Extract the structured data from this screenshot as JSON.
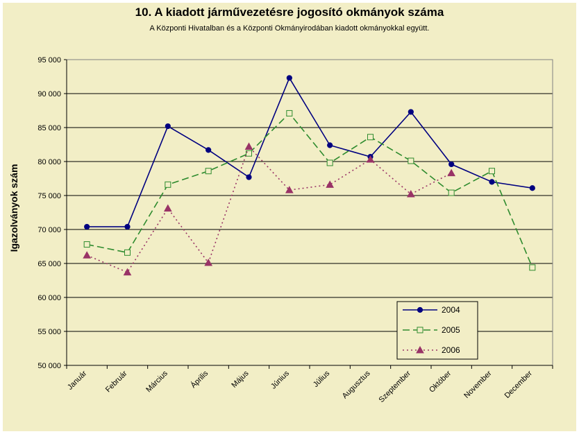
{
  "chart_data": {
    "type": "line",
    "title": "10. A  kiadott járművezetésre  jogosító okmányok száma",
    "subtitle": "A  Központi Hivatalban és a Központi Okmányirodában kiadott okmányokkal együtt.",
    "ylabel": "Igazolványok szám",
    "xlabel": "",
    "ylim": [
      50000,
      95000
    ],
    "ytick_step": 5000,
    "ytick_labels": [
      "50 000",
      "55 000",
      "60 000",
      "65 000",
      "70 000",
      "75 000",
      "80 000",
      "85 000",
      "90 000",
      "95 000"
    ],
    "grid": true,
    "legend_position": "bottom-right",
    "categories": [
      "Január",
      "Február",
      "Március",
      "Április",
      "Május",
      "Június",
      "Július",
      "Augusztus",
      "Szeptember",
      "Október",
      "November",
      "December"
    ],
    "series": [
      {
        "name": "2004",
        "color": "#000080",
        "marker": "circle",
        "dash": "",
        "values": [
          70400,
          70400,
          85200,
          81700,
          77700,
          92300,
          82400,
          80700,
          87300,
          79600,
          77000,
          76100
        ]
      },
      {
        "name": "2005",
        "color": "#2e8b2e",
        "marker": "square",
        "dash": "10,5",
        "values": [
          67800,
          66600,
          76600,
          78600,
          81200,
          87100,
          79800,
          83600,
          80100,
          75400,
          78600,
          64400
        ]
      },
      {
        "name": "2006",
        "color": "#993366",
        "marker": "triangle",
        "dash": "2,4",
        "values": [
          66200,
          63700,
          73100,
          65100,
          82200,
          75800,
          76600,
          80300,
          75200,
          78300,
          null,
          null
        ]
      }
    ]
  }
}
